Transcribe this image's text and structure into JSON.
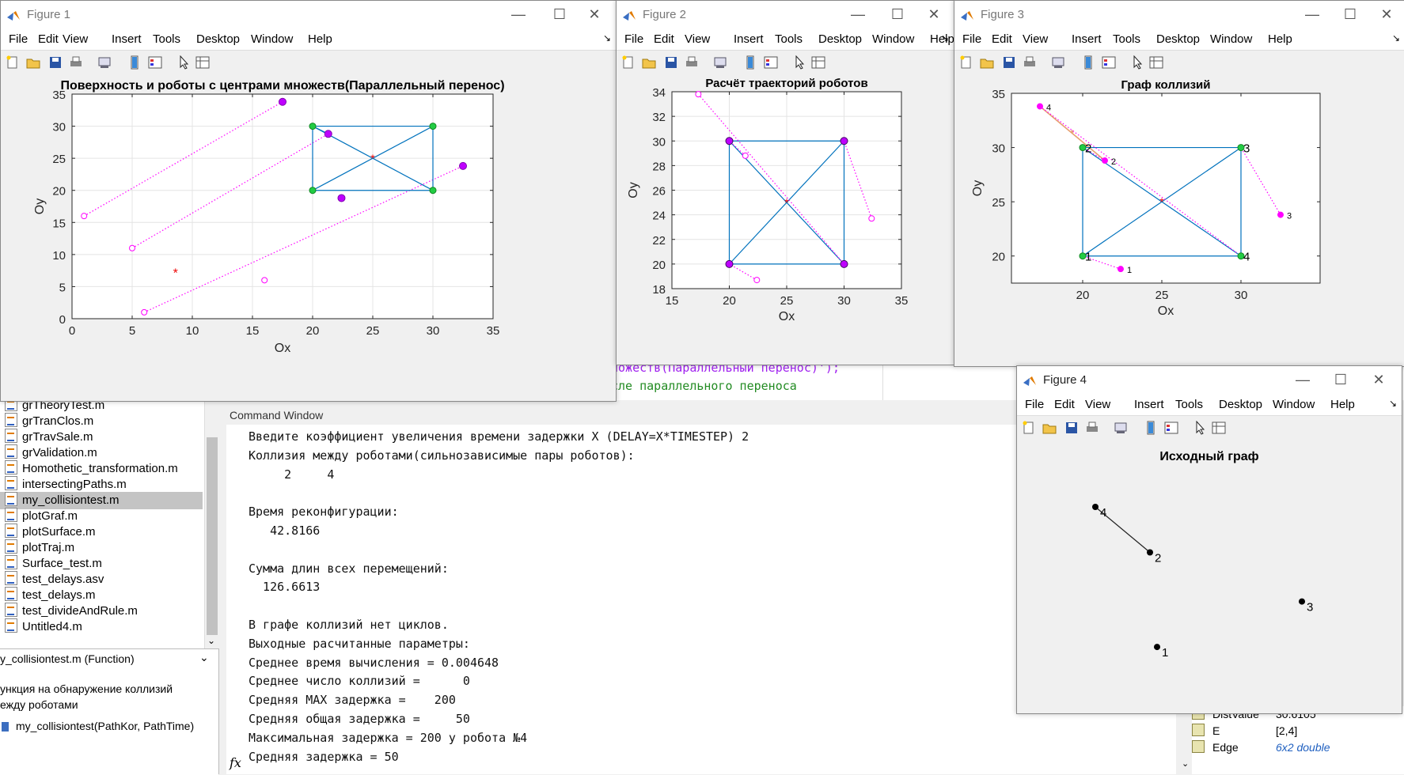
{
  "editor": {
    "code_line1": "ножеств(Параллельный перенос)');",
    "code_line2": "сле параллельного переноса",
    "command_window_title": "Command Window",
    "files": [
      "grTheoryTest.m",
      "grTranClos.m",
      "grTravSale.m",
      "grValidation.m",
      "Homothetic_transformation.m",
      "intersectingPaths.m",
      "my_collisiontest.m",
      "plotGraf.m",
      "plotSurface.m",
      "plotTraj.m",
      "Surface_test.m",
      "test_delays.asv",
      "test_delays.m",
      "test_divideAndRule.m",
      "Untitled4.m"
    ],
    "selected_file": "my_collisiontest.m",
    "details_title": "y_collisiontest.m  (Function)",
    "details_desc1": "ункция на обнаружение коллизий",
    "details_desc2": "ежду роботами",
    "details_sig": "my_collisiontest(PathKor, PathTime)",
    "command_lines": [
      "Введите коэффициент увеличения времени задержки X (DELAY=X*TIMESTEP) 2",
      "Коллизия между роботами(сильнозависимые пары роботов):",
      "     2     4",
      "",
      "Время реконфигурации:",
      "   42.8166",
      "",
      "Сумма длин всех перемещений:",
      "  126.6613",
      "",
      "В графе коллизий нет циклов.",
      "Выходные расчитанные параметры:",
      "Среднее время вычисления = 0.004648",
      "Среднее число коллизий =      0",
      "Средняя MAX задержка =    200",
      "Средняя общая задержка =     50",
      "Максимальная задержка = 200 у робота №4",
      "Средняя задержка = 50"
    ],
    "fx_label": "fx",
    "variables": [
      {
        "name": "DistValue",
        "value": "30.6105"
      },
      {
        "name": "E",
        "value": "[2,4]"
      },
      {
        "name": "Edge",
        "value": "6x2 double"
      }
    ]
  },
  "menu_items": [
    "File",
    "Edit",
    "View",
    "Insert",
    "Tools",
    "Desktop",
    "Window",
    "Help"
  ],
  "window_controls": {
    "minimize": "—",
    "maximize": "☐",
    "close": "✕"
  },
  "fig1": {
    "window_title": "Figure 1",
    "chart_data": {
      "type": "scatter",
      "title": "Поверхность и роботы с центрами множеств(Параллельный перенос)",
      "xlabel": "Ox",
      "ylabel": "Oy",
      "xlim": [
        0,
        35
      ],
      "ylim": [
        0,
        35
      ],
      "xticks": [
        0,
        5,
        10,
        15,
        20,
        25,
        30,
        35
      ],
      "yticks": [
        0,
        5,
        10,
        15,
        20,
        25,
        30,
        35
      ],
      "grid": true,
      "rectangle": [
        [
          20,
          20
        ],
        [
          30,
          20
        ],
        [
          30,
          30
        ],
        [
          20,
          30
        ]
      ],
      "diagonals": [
        [
          [
            20,
            20
          ],
          [
            30,
            30
          ]
        ],
        [
          [
            20,
            30
          ],
          [
            30,
            20
          ]
        ]
      ],
      "center": [
        25,
        25
      ],
      "corner_points": [
        [
          20,
          20
        ],
        [
          30,
          20
        ],
        [
          30,
          30
        ],
        [
          20,
          30
        ]
      ],
      "start_points": [
        [
          1,
          16
        ],
        [
          5,
          11
        ],
        [
          6,
          1
        ],
        [
          16,
          6
        ]
      ],
      "end_points": [
        [
          17.5,
          33.8
        ],
        [
          21.3,
          28.8
        ],
        [
          32.5,
          23.8
        ],
        [
          22.4,
          18.8
        ]
      ],
      "paths": [
        [
          [
            1,
            16
          ],
          [
            17.5,
            33.8
          ]
        ],
        [
          [
            5,
            11
          ],
          [
            21.3,
            28.8
          ]
        ],
        [
          [
            6,
            1
          ],
          [
            32.5,
            23.8
          ]
        ]
      ],
      "extra_path": [
        [
          20,
          30
        ],
        [
          21.3,
          28.8
        ]
      ],
      "marker": [
        8.6,
        7.2
      ]
    }
  },
  "fig2": {
    "window_title": "Figure 2",
    "chart_data": {
      "type": "scatter",
      "title": "Расчёт траекторий роботов",
      "xlabel": "Ox",
      "ylabel": "Oy",
      "xlim": [
        15,
        35
      ],
      "ylim": [
        18,
        34
      ],
      "xticks": [
        15,
        20,
        25,
        30,
        35
      ],
      "yticks": [
        18,
        20,
        22,
        24,
        26,
        28,
        30,
        32,
        34
      ],
      "grid": true,
      "rectangle": [
        [
          20,
          20
        ],
        [
          30,
          20
        ],
        [
          30,
          30
        ],
        [
          20,
          30
        ]
      ],
      "diagonals": [
        [
          [
            20,
            20
          ],
          [
            30,
            30
          ]
        ],
        [
          [
            20,
            30
          ],
          [
            30,
            20
          ]
        ]
      ],
      "center": [
        25,
        25
      ],
      "corner_points": [
        [
          20,
          20
        ],
        [
          30,
          20
        ],
        [
          30,
          30
        ],
        [
          20,
          30
        ]
      ],
      "start_points": [
        [
          17.3,
          33.8
        ],
        [
          21.4,
          28.8
        ],
        [
          32.4,
          23.7
        ],
        [
          22.4,
          18.7
        ]
      ],
      "paths": [
        [
          [
            17.3,
            33.8
          ],
          [
            30,
            20
          ]
        ],
        [
          [
            21.4,
            28.8
          ],
          [
            20,
            30
          ]
        ],
        [
          [
            32.4,
            23.7
          ],
          [
            30,
            30
          ]
        ],
        [
          [
            22.4,
            18.7
          ],
          [
            20,
            20
          ]
        ]
      ]
    }
  },
  "fig3": {
    "window_title": "Figure 3",
    "chart_data": {
      "type": "scatter",
      "title": "Граф коллизий",
      "xlabel": "Ox",
      "ylabel": "Oy",
      "xlim": [
        15.5,
        35
      ],
      "ylim": [
        17.5,
        35
      ],
      "xticks": [
        20,
        25,
        30
      ],
      "yticks": [
        20,
        25,
        30,
        35
      ],
      "grid": false,
      "rectangle": [
        [
          20,
          20
        ],
        [
          30,
          20
        ],
        [
          30,
          30
        ],
        [
          20,
          30
        ]
      ],
      "diagonals": [
        [
          [
            20,
            20
          ],
          [
            30,
            30
          ]
        ],
        [
          [
            20,
            30
          ],
          [
            30,
            20
          ]
        ]
      ],
      "center": [
        25,
        25
      ],
      "corner_points": [
        [
          20,
          20,
          "1"
        ],
        [
          30,
          20,
          "4"
        ],
        [
          30,
          30,
          "3"
        ],
        [
          20,
          30,
          "2"
        ]
      ],
      "robot_points": [
        [
          22.4,
          18.8,
          "1"
        ],
        [
          21.4,
          28.8,
          "2"
        ],
        [
          32.5,
          23.8,
          "3"
        ],
        [
          17.3,
          33.8,
          "4"
        ]
      ],
      "paths": [
        [
          [
            17.3,
            33.8
          ],
          [
            30,
            20
          ]
        ],
        [
          [
            21.4,
            28.8
          ],
          [
            20,
            30
          ]
        ],
        [
          [
            32.5,
            23.8
          ],
          [
            30,
            30
          ]
        ],
        [
          [
            22.4,
            18.8
          ],
          [
            20,
            20
          ]
        ]
      ],
      "collision_edge": [
        [
          17.3,
          33.8
        ],
        [
          21.4,
          28.8
        ]
      ]
    }
  },
  "fig4": {
    "window_title": "Figure 4",
    "chart_data": {
      "type": "graph",
      "title": "Исходный граф",
      "nodes": [
        {
          "id": "1",
          "x": 0.29,
          "y": 0.87
        },
        {
          "id": "2",
          "x": 0.26,
          "y": 0.35
        },
        {
          "id": "3",
          "x": 0.9,
          "y": 0.62
        },
        {
          "id": "4",
          "x": 0.03,
          "y": 0.1
        }
      ],
      "edges": [
        [
          "4",
          "2"
        ]
      ]
    }
  }
}
